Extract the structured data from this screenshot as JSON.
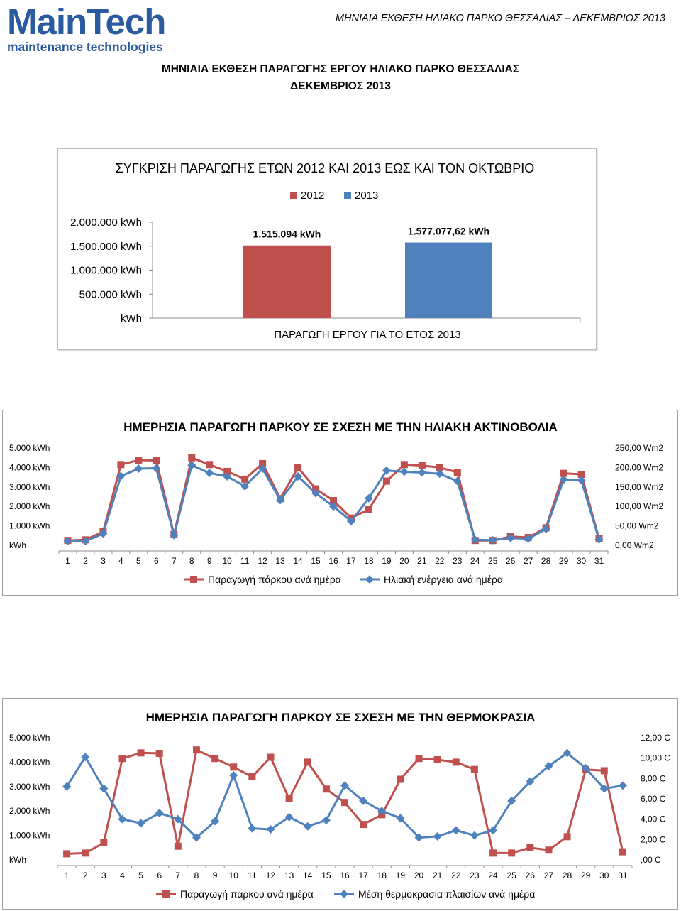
{
  "header": {
    "logo_main": "MainTech",
    "logo_sub": "maintenance technologies",
    "report_label": "ΜΗΝΙΑΙΑ ΕΚΘΕΣΗ ΗΛΙΑΚΟ ΠΑΡΚΟ ΘΕΣΣΑΛΙΑΣ – ΔΕΚΕΜΒΡΙΟΣ 2013"
  },
  "document": {
    "title_line1": "ΜΗΝΙΑΙΑ ΕΚΘΕΣΗ ΠΑΡΑΓΩΓΗΣ ΕΡΓΟΥ ΗΛΙΑΚΟ ΠΑΡΚΟ ΘΕΣΣΑΛΙΑΣ",
    "title_line2": "ΔΕΚΕΜΒΡΙΟΣ 2013"
  },
  "colors": {
    "red": "#c0504d",
    "blue": "#4f81bd",
    "logo": "#2a5aa0"
  },
  "chart_data": [
    {
      "type": "bar",
      "title": "ΣΥΓΚΡΙΣΗ ΠΑΡΑΓΩΓΗΣ ΕΤΩΝ 2012 ΚΑΙ 2013 ΕΩΣ ΚΑΙ ΤΟΝ ΟΚΤΩΒΡΙΟ",
      "xlabel": "ΠΑΡΑΓΩΓΗ ΕΡΓΟΥ ΓΙΑ ΤΟ ΕΤΟΣ 2013",
      "ylim": [
        0,
        2000000
      ],
      "y_ticks": [
        0,
        500000,
        1000000,
        1500000,
        2000000
      ],
      "y_tick_labels": [
        "kWh",
        "500.000 kWh",
        "1.000.000 kWh",
        "1.500.000 kWh",
        "2.000.000 kWh"
      ],
      "legend_position": "top",
      "series": [
        {
          "name": "2012",
          "values": [
            1515094
          ],
          "label": "1.515.094 kWh",
          "color": "#c0504d"
        },
        {
          "name": "2013",
          "values": [
            1577077.62
          ],
          "label": "1.577.077,62 kWh",
          "color": "#4f81bd"
        }
      ]
    },
    {
      "type": "line",
      "title": "ΗΜΕΡΗΣΙΑ ΠΑΡΑΓΩΓΗ ΠΑΡΚΟΥ ΣΕ ΣΧΕΣΗ ΜΕ ΤΗΝ ΗΛΙΑΚΗ ΑΚΤΙΝΟΒΟΛΙΑ",
      "x": [
        1,
        2,
        3,
        4,
        5,
        6,
        7,
        8,
        9,
        10,
        11,
        12,
        13,
        14,
        15,
        16,
        17,
        18,
        19,
        20,
        21,
        22,
        23,
        24,
        25,
        26,
        27,
        28,
        29,
        30,
        31
      ],
      "ylim_left": [
        0,
        5000
      ],
      "y_left_tick_labels": [
        "kWh",
        "1.000 kWh",
        "2.000 kWh",
        "3.000 kWh",
        "4.000 kWh",
        "5.000 kWh"
      ],
      "ylim_right": [
        0,
        250
      ],
      "y_right_tick_labels": [
        "0,00 Wm2",
        "50,00 Wm2",
        "100,00 Wm2",
        "150,00 Wm2",
        "200,00 Wm2",
        "250,00 Wm2"
      ],
      "legend_position": "bottom",
      "series": [
        {
          "name": "Παραγωγή πάρκου ανά ημέρα",
          "axis": "left",
          "color": "#c0504d",
          "marker": "square",
          "values": [
            250,
            280,
            700,
            4150,
            4380,
            4360,
            560,
            4500,
            4150,
            3800,
            3400,
            4200,
            2400,
            4000,
            2900,
            2300,
            1400,
            1850,
            3300,
            4150,
            4100,
            4000,
            3750,
            250,
            250,
            450,
            400,
            900,
            3700,
            3650,
            330
          ]
        },
        {
          "name": "Ηλιακή ενέργεια ανά ημέρα",
          "axis": "right",
          "color": "#4f81bd",
          "marker": "diamond",
          "values": [
            11,
            11,
            30,
            178,
            197,
            198,
            26,
            206,
            186,
            177,
            152,
            197,
            116,
            177,
            134,
            100,
            62,
            121,
            192,
            189,
            187,
            184,
            165,
            14,
            13,
            19,
            17,
            42,
            169,
            167,
            15
          ]
        }
      ]
    },
    {
      "type": "line",
      "title": "ΗΜΕΡΗΣΙΑ ΠΑΡΑΓΩΓΗ ΠΑΡΚΟΥ ΣΕ ΣΧΕΣΗ ΜΕ ΤΗΝ ΘΕΡΜΟΚΡΑΣΙΑ",
      "x": [
        1,
        2,
        3,
        4,
        5,
        6,
        7,
        8,
        9,
        10,
        11,
        12,
        13,
        14,
        15,
        16,
        17,
        18,
        19,
        20,
        21,
        22,
        23,
        24,
        25,
        26,
        27,
        28,
        29,
        30,
        31
      ],
      "ylim_left": [
        0,
        5000
      ],
      "y_left_tick_labels": [
        "kWh",
        "1.000 kWh",
        "2.000 kWh",
        "3.000 kWh",
        "4.000 kWh",
        "5.000 kWh"
      ],
      "ylim_right": [
        0,
        12
      ],
      "y_right_tick_labels": [
        ",00 C",
        "2,00 C",
        "4,00 C",
        "6,00 C",
        "8,00 C",
        "10,00 C",
        "12,00 C"
      ],
      "legend_position": "bottom",
      "series": [
        {
          "name": "Παραγωγή πάρκου ανά ημέρα",
          "axis": "left",
          "color": "#c0504d",
          "marker": "square",
          "values": [
            250,
            280,
            700,
            4150,
            4380,
            4360,
            560,
            4500,
            4150,
            3800,
            3400,
            4200,
            2500,
            4000,
            2900,
            2350,
            1450,
            1850,
            3300,
            4150,
            4100,
            4000,
            3700,
            280,
            280,
            500,
            400,
            950,
            3700,
            3650,
            330
          ]
        },
        {
          "name": "Μέση θερμοκρασία πλαισίων ανά ημέρα",
          "axis": "right",
          "color": "#4f81bd",
          "marker": "diamond",
          "values": [
            7.2,
            10.1,
            7.0,
            4.0,
            3.6,
            4.6,
            4.0,
            2.2,
            3.8,
            8.3,
            3.1,
            3.0,
            4.2,
            3.3,
            3.9,
            7.3,
            5.8,
            4.8,
            4.1,
            2.2,
            2.3,
            2.9,
            2.4,
            2.9,
            5.8,
            7.7,
            9.2,
            10.5,
            9.0,
            7.0,
            7.3
          ]
        }
      ]
    }
  ]
}
